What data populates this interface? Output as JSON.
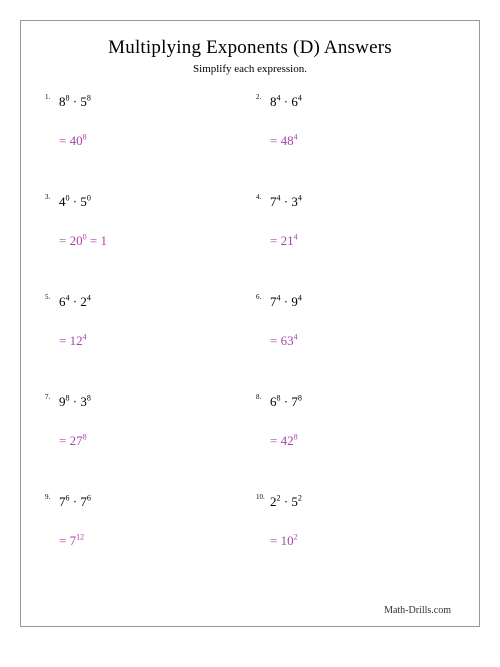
{
  "title": "Multiplying Exponents (D) Answers",
  "subtitle": "Simplify each expression.",
  "footer": "Math-Drills.com",
  "answer_color": "#a844aa",
  "text_color": "#000000",
  "problems": [
    {
      "num": "1.",
      "b1": "8",
      "e1": "8",
      "b2": "5",
      "e2": "8",
      "ab": "40",
      "ae": "8",
      "extra": ""
    },
    {
      "num": "2.",
      "b1": "8",
      "e1": "4",
      "b2": "6",
      "e2": "4",
      "ab": "48",
      "ae": "4",
      "extra": ""
    },
    {
      "num": "3.",
      "b1": "4",
      "e1": "0",
      "b2": "5",
      "e2": "0",
      "ab": "20",
      "ae": "0",
      "extra": " = 1"
    },
    {
      "num": "4.",
      "b1": "7",
      "e1": "4",
      "b2": "3",
      "e2": "4",
      "ab": "21",
      "ae": "4",
      "extra": ""
    },
    {
      "num": "5.",
      "b1": "6",
      "e1": "4",
      "b2": "2",
      "e2": "4",
      "ab": "12",
      "ae": "4",
      "extra": ""
    },
    {
      "num": "6.",
      "b1": "7",
      "e1": "4",
      "b2": "9",
      "e2": "4",
      "ab": "63",
      "ae": "4",
      "extra": ""
    },
    {
      "num": "7.",
      "b1": "9",
      "e1": "8",
      "b2": "3",
      "e2": "8",
      "ab": "27",
      "ae": "8",
      "extra": ""
    },
    {
      "num": "8.",
      "b1": "6",
      "e1": "8",
      "b2": "7",
      "e2": "8",
      "ab": "42",
      "ae": "8",
      "extra": ""
    },
    {
      "num": "9.",
      "b1": "7",
      "e1": "6",
      "b2": "7",
      "e2": "6",
      "ab": "7",
      "ae": "12",
      "extra": ""
    },
    {
      "num": "10.",
      "b1": "2",
      "e1": "2",
      "b2": "5",
      "e2": "2",
      "ab": "10",
      "ae": "2",
      "extra": ""
    }
  ]
}
